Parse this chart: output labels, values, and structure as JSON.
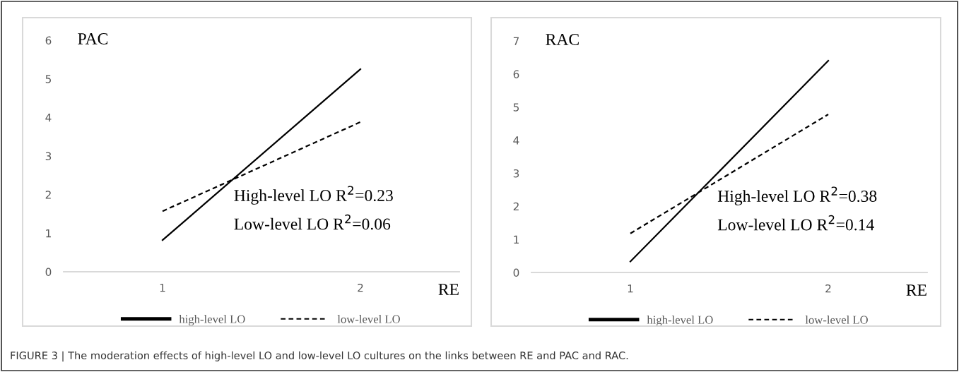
{
  "chart_data": [
    {
      "type": "line",
      "categories": [
        "1",
        "2"
      ],
      "ylabel": "PAC",
      "xlabel": "RE",
      "ylim": [
        0,
        6
      ],
      "yticks": [
        0,
        1,
        2,
        3,
        4,
        5,
        6
      ],
      "grid": false,
      "legend": "bottom",
      "marker": "none",
      "series": [
        {
          "name": "high-level LO",
          "color": "#000000",
          "line_style": "solid",
          "values": [
            0.82,
            5.25
          ]
        },
        {
          "name": "low-level LO",
          "color": "#000000",
          "line_style": "dashed",
          "values": [
            1.57,
            3.88
          ]
        }
      ],
      "annotations": [
        "High-level LO R$^{2}$=0.23",
        "Low-level LO R$^{2}$=0.06",
        "FIGURE 3 | The moderation effects of high-level LO and low-level LO cultures on the links between RE and PAC and RAC."
      ]
    },
    {
      "type": "line",
      "categories": [
        "1",
        "2"
      ],
      "ylabel": "RAC",
      "xlabel": "RE",
      "ylim": [
        0,
        7
      ],
      "yticks": [
        0,
        1,
        2,
        3,
        4,
        5,
        6,
        7
      ],
      "grid": false,
      "legend": "bottom",
      "marker": "none",
      "series": [
        {
          "name": "high-level LO",
          "color": "#000000",
          "line_style": "solid",
          "values": [
            0.33,
            6.4
          ]
        },
        {
          "name": "low-level LO",
          "color": "#000000",
          "line_style": "dashed",
          "values": [
            1.18,
            4.78
          ]
        }
      ],
      "annotations": [
        "High-level LO R$^{2}$=0.38",
        "Low-level LO R$^{2}$=0.14"
      ]
    }
  ]
}
